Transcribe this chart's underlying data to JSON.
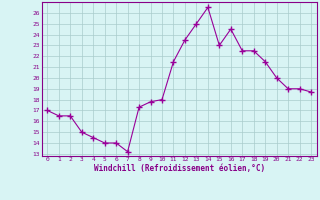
{
  "x": [
    0,
    1,
    2,
    3,
    4,
    5,
    6,
    7,
    8,
    9,
    10,
    11,
    12,
    13,
    14,
    15,
    16,
    17,
    18,
    19,
    20,
    21,
    22,
    23
  ],
  "y": [
    17,
    16.5,
    16.5,
    15,
    14.5,
    14,
    14,
    13.2,
    17.3,
    17.8,
    18,
    21.5,
    23.5,
    25,
    26.5,
    23,
    24.5,
    22.5,
    22.5,
    21.5,
    20,
    19,
    19,
    18.7
  ],
  "line_color": "#990099",
  "marker": "D",
  "marker_size": 2,
  "bg_color": "#d8f4f4",
  "grid_color": "#aacccc",
  "tick_color": "#880088",
  "xlabel": "Windchill (Refroidissement éolien,°C)",
  "ylabel_ticks": [
    13,
    14,
    15,
    16,
    17,
    18,
    19,
    20,
    21,
    22,
    23,
    24,
    25,
    26
  ],
  "xlim": [
    -0.5,
    23.5
  ],
  "ylim": [
    12.8,
    27.0
  ],
  "title": ""
}
